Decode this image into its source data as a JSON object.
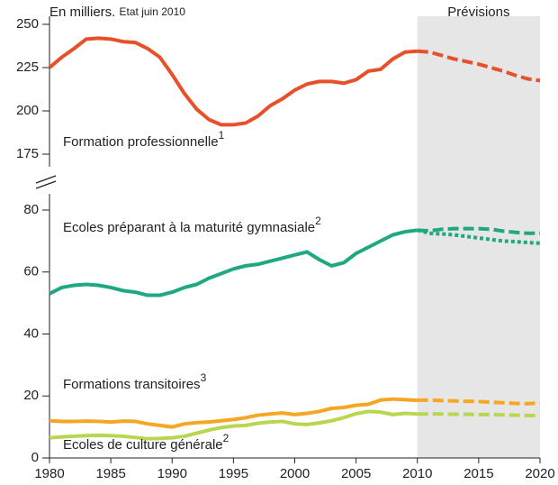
{
  "unit_note": "En milliers.",
  "date_note": "Etat juin 2010",
  "forecast_label": "Prévisions",
  "forecast_start": 2010,
  "chart_data": [
    {
      "type": "line",
      "ylim": [
        175,
        250
      ],
      "yticks": [
        175,
        200,
        225,
        250
      ],
      "x": [
        1980,
        1981,
        1982,
        1983,
        1984,
        1985,
        1986,
        1987,
        1988,
        1989,
        1990,
        1991,
        1992,
        1993,
        1994,
        1995,
        1996,
        1997,
        1998,
        1999,
        2000,
        2001,
        2002,
        2003,
        2004,
        2005,
        2006,
        2007,
        2008,
        2009,
        2010,
        2011,
        2012,
        2013,
        2014,
        2015,
        2016,
        2017,
        2018,
        2019,
        2020
      ],
      "series": [
        {
          "name": "Formation professionnelle",
          "footnote": "1",
          "color": "#e8502a",
          "values": [
            225,
            231,
            236,
            241.5,
            242,
            241.5,
            240,
            239.5,
            236,
            231,
            221,
            210,
            201,
            195,
            192,
            192,
            193,
            197,
            203,
            207,
            212,
            215.5,
            217,
            217,
            216,
            218,
            223,
            224,
            230,
            234,
            234.5,
            null,
            null,
            null,
            null,
            null,
            null,
            null,
            null,
            null,
            null
          ],
          "forecast": [
            null,
            null,
            null,
            null,
            null,
            null,
            null,
            null,
            null,
            null,
            null,
            null,
            null,
            null,
            null,
            null,
            null,
            null,
            null,
            null,
            null,
            null,
            null,
            null,
            null,
            null,
            null,
            null,
            null,
            null,
            234.5,
            234,
            232,
            230,
            228.5,
            227,
            225,
            223,
            220.5,
            218.5,
            217.5
          ]
        }
      ]
    },
    {
      "type": "line",
      "ylim": [
        0,
        80
      ],
      "yticks": [
        0,
        20,
        40,
        60,
        80
      ],
      "xlim": [
        1980,
        2020
      ],
      "xticks": [
        1980,
        1985,
        1990,
        1995,
        2000,
        2005,
        2010,
        2015,
        2020
      ],
      "x": [
        1980,
        1981,
        1982,
        1983,
        1984,
        1985,
        1986,
        1987,
        1988,
        1989,
        1990,
        1991,
        1992,
        1993,
        1994,
        1995,
        1996,
        1997,
        1998,
        1999,
        2000,
        2001,
        2002,
        2003,
        2004,
        2005,
        2006,
        2007,
        2008,
        2009,
        2010,
        2011,
        2012,
        2013,
        2014,
        2015,
        2016,
        2017,
        2018,
        2019,
        2020
      ],
      "series": [
        {
          "name": "Ecoles préparant à la maturité gymnasiale",
          "footnote": "2",
          "color": "#1fa882",
          "values": [
            53,
            55,
            55.7,
            56,
            55.7,
            55,
            54,
            53.5,
            52.5,
            52.5,
            53.5,
            55,
            56,
            58,
            59.5,
            61,
            62,
            62.5,
            63.5,
            64.5,
            65.5,
            66.5,
            64,
            62,
            63,
            66,
            68,
            70,
            72,
            73,
            73.5,
            null,
            null,
            null,
            null,
            null,
            null,
            null,
            null,
            null,
            null
          ],
          "forecast": [
            null,
            null,
            null,
            null,
            null,
            null,
            null,
            null,
            null,
            null,
            null,
            null,
            null,
            null,
            null,
            null,
            null,
            null,
            null,
            null,
            null,
            null,
            null,
            null,
            null,
            null,
            null,
            null,
            null,
            null,
            73.5,
            73.3,
            73.8,
            74,
            74,
            74,
            73.8,
            73.2,
            72.8,
            72.5,
            72.5
          ],
          "forecast_alt": [
            null,
            null,
            null,
            null,
            null,
            null,
            null,
            null,
            null,
            null,
            null,
            null,
            null,
            null,
            null,
            null,
            null,
            null,
            null,
            null,
            null,
            null,
            null,
            null,
            null,
            null,
            null,
            null,
            null,
            null,
            73.5,
            72.5,
            72.3,
            72,
            71.5,
            71,
            70.5,
            70,
            69.8,
            69.5,
            69.3
          ]
        },
        {
          "name": "Formations transitoires",
          "footnote": "3",
          "color": "#f5a623",
          "values": [
            12,
            11.8,
            11.8,
            11.9,
            11.8,
            11.6,
            11.9,
            11.8,
            11,
            10.5,
            10,
            11,
            11.4,
            11.6,
            12,
            12.4,
            13,
            13.8,
            14.2,
            14.5,
            14,
            14.4,
            15,
            16,
            16.3,
            17,
            17.3,
            18.7,
            19,
            18.8,
            18.6,
            null,
            null,
            null,
            null,
            null,
            null,
            null,
            null,
            null,
            null
          ],
          "forecast": [
            null,
            null,
            null,
            null,
            null,
            null,
            null,
            null,
            null,
            null,
            null,
            null,
            null,
            null,
            null,
            null,
            null,
            null,
            null,
            null,
            null,
            null,
            null,
            null,
            null,
            null,
            null,
            null,
            null,
            null,
            18.6,
            18.7,
            18.5,
            18.4,
            18.3,
            18.2,
            18,
            17.8,
            17.6,
            17.5,
            17.8
          ]
        },
        {
          "name": "Ecoles de culture générale",
          "footnote": "2",
          "color": "#b9d650",
          "values": [
            6.5,
            6.8,
            7,
            7.2,
            7.3,
            7.2,
            7,
            6.6,
            6.2,
            6.3,
            6.5,
            7,
            8,
            9,
            9.8,
            10.3,
            10.5,
            11.2,
            11.6,
            11.8,
            11,
            10.8,
            11.3,
            12,
            13,
            14.3,
            15,
            14.8,
            14,
            14.4,
            14.2,
            null,
            null,
            null,
            null,
            null,
            null,
            null,
            null,
            null,
            null
          ],
          "forecast": [
            null,
            null,
            null,
            null,
            null,
            null,
            null,
            null,
            null,
            null,
            null,
            null,
            null,
            null,
            null,
            null,
            null,
            null,
            null,
            null,
            null,
            null,
            null,
            null,
            null,
            null,
            null,
            null,
            null,
            null,
            14.2,
            14.2,
            14.2,
            14.1,
            14.1,
            14,
            14,
            13.9,
            13.8,
            13.7,
            13.6
          ]
        }
      ]
    }
  ]
}
